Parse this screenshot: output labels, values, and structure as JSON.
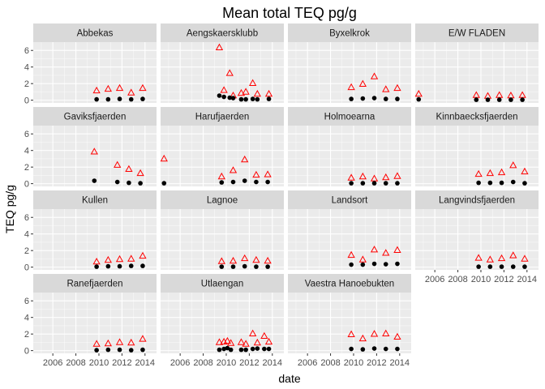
{
  "chart_data": {
    "type": "scatter",
    "title": "Mean total TEQ pg/g",
    "xlabel": "date",
    "ylabel": "TEQ pg/g",
    "xlim": [
      2004.3,
      2015.0
    ],
    "ylim": [
      -0.33,
      7.0
    ],
    "xticks": [
      "2006",
      "2008",
      "2010",
      "2012",
      "2014"
    ],
    "yticks": [
      "0",
      "2",
      "4",
      "6"
    ],
    "grid": true,
    "legend": "none",
    "colors": {
      "black_series": "#000000",
      "red_series": "#ff0000"
    },
    "markers": {
      "black_series": "filled-circle",
      "red_series": "open-triangle"
    },
    "panels": [
      {
        "name": "Abbekas",
        "black": [
          [
            2009.8,
            0.1
          ],
          [
            2010.8,
            0.1
          ],
          [
            2011.8,
            0.15
          ],
          [
            2012.8,
            0.1
          ],
          [
            2013.8,
            0.15
          ]
        ],
        "red": [
          [
            2009.8,
            1.15
          ],
          [
            2010.8,
            1.35
          ],
          [
            2011.8,
            1.45
          ],
          [
            2012.8,
            0.9
          ],
          [
            2013.8,
            1.45
          ]
        ]
      },
      {
        "name": "Aengskaersklubb",
        "black": [
          [
            2009.4,
            0.55
          ],
          [
            2009.8,
            0.4
          ],
          [
            2010.3,
            0.3
          ],
          [
            2010.6,
            0.25
          ],
          [
            2011.3,
            0.1
          ],
          [
            2011.7,
            0.1
          ],
          [
            2012.3,
            0.15
          ],
          [
            2012.7,
            0.1
          ],
          [
            2013.7,
            0.15
          ]
        ],
        "red": [
          [
            2009.4,
            6.35
          ],
          [
            2009.8,
            1.2
          ],
          [
            2010.3,
            3.25
          ],
          [
            2010.6,
            0.55
          ],
          [
            2011.3,
            0.85
          ],
          [
            2011.7,
            1.0
          ],
          [
            2012.3,
            2.05
          ],
          [
            2012.7,
            0.75
          ],
          [
            2013.7,
            0.75
          ]
        ]
      },
      {
        "name": "Byxelkrok",
        "black": [
          [
            2009.8,
            0.15
          ],
          [
            2010.8,
            0.2
          ],
          [
            2011.8,
            0.25
          ],
          [
            2012.8,
            0.15
          ],
          [
            2013.8,
            0.15
          ]
        ],
        "red": [
          [
            2009.8,
            1.55
          ],
          [
            2010.8,
            1.95
          ],
          [
            2011.8,
            2.85
          ],
          [
            2012.8,
            1.3
          ],
          [
            2013.8,
            1.45
          ]
        ]
      },
      {
        "name": "E/W FLADEN",
        "black": [
          [
            2004.6,
            0.1
          ],
          [
            2009.6,
            0.05
          ],
          [
            2010.6,
            0.05
          ],
          [
            2011.6,
            0.05
          ],
          [
            2012.6,
            0.05
          ],
          [
            2013.6,
            0.05
          ]
        ],
        "red": [
          [
            2004.6,
            0.75
          ],
          [
            2009.6,
            0.6
          ],
          [
            2010.6,
            0.5
          ],
          [
            2011.6,
            0.6
          ],
          [
            2012.6,
            0.55
          ],
          [
            2013.6,
            0.6
          ]
        ]
      },
      {
        "name": "Gaviksfjaerden",
        "black": [
          [
            2009.6,
            0.35
          ],
          [
            2011.6,
            0.2
          ],
          [
            2012.6,
            0.1
          ],
          [
            2013.6,
            0.05
          ]
        ],
        "red": [
          [
            2009.6,
            3.85
          ],
          [
            2011.6,
            2.25
          ],
          [
            2012.6,
            1.75
          ],
          [
            2013.6,
            1.25
          ]
        ]
      },
      {
        "name": "Harufjaerden",
        "black": [
          [
            2004.6,
            0.05
          ],
          [
            2009.6,
            0.15
          ],
          [
            2010.6,
            0.2
          ],
          [
            2011.6,
            0.35
          ],
          [
            2012.6,
            0.2
          ],
          [
            2013.6,
            0.2
          ]
        ],
        "red": [
          [
            2004.6,
            3.0
          ],
          [
            2009.6,
            0.85
          ],
          [
            2010.6,
            1.6
          ],
          [
            2011.6,
            2.9
          ],
          [
            2012.6,
            1.05
          ],
          [
            2013.6,
            1.1
          ]
        ]
      },
      {
        "name": "Holmoearna",
        "black": [
          [
            2009.8,
            0.05
          ],
          [
            2010.8,
            0.05
          ],
          [
            2011.8,
            0.05
          ],
          [
            2012.8,
            0.05
          ],
          [
            2013.8,
            0.05
          ]
        ],
        "red": [
          [
            2009.8,
            0.7
          ],
          [
            2010.8,
            0.85
          ],
          [
            2011.8,
            0.6
          ],
          [
            2012.8,
            0.75
          ],
          [
            2013.8,
            0.9
          ]
        ]
      },
      {
        "name": "Kinnbaecksfjaerden",
        "black": [
          [
            2009.8,
            0.1
          ],
          [
            2010.8,
            0.1
          ],
          [
            2011.8,
            0.1
          ],
          [
            2012.8,
            0.2
          ],
          [
            2013.8,
            0.05
          ]
        ],
        "red": [
          [
            2009.8,
            1.15
          ],
          [
            2010.8,
            1.25
          ],
          [
            2011.8,
            1.35
          ],
          [
            2012.8,
            2.2
          ],
          [
            2013.8,
            1.45
          ]
        ]
      },
      {
        "name": "Kullen",
        "black": [
          [
            2009.8,
            0.05
          ],
          [
            2010.8,
            0.1
          ],
          [
            2011.8,
            0.1
          ],
          [
            2012.8,
            0.15
          ],
          [
            2013.8,
            0.15
          ]
        ],
        "red": [
          [
            2009.8,
            0.65
          ],
          [
            2010.8,
            0.85
          ],
          [
            2011.8,
            0.95
          ],
          [
            2012.8,
            1.0
          ],
          [
            2013.8,
            1.35
          ]
        ]
      },
      {
        "name": "Lagnoe",
        "black": [
          [
            2009.6,
            0.05
          ],
          [
            2010.6,
            0.05
          ],
          [
            2011.6,
            0.1
          ],
          [
            2012.6,
            0.05
          ],
          [
            2013.6,
            0.05
          ]
        ],
        "red": [
          [
            2009.6,
            0.7
          ],
          [
            2010.6,
            0.75
          ],
          [
            2011.6,
            1.05
          ],
          [
            2012.6,
            0.85
          ],
          [
            2013.6,
            0.75
          ]
        ]
      },
      {
        "name": "Landsort",
        "black": [
          [
            2009.8,
            0.3
          ],
          [
            2010.8,
            0.3
          ],
          [
            2011.8,
            0.4
          ],
          [
            2012.8,
            0.35
          ],
          [
            2013.8,
            0.4
          ]
        ],
        "red": [
          [
            2009.8,
            1.45
          ],
          [
            2010.8,
            0.9
          ],
          [
            2011.8,
            2.1
          ],
          [
            2012.8,
            1.7
          ],
          [
            2013.8,
            2.05
          ]
        ]
      },
      {
        "name": "Langvindsfjaerden",
        "black": [
          [
            2009.8,
            0.05
          ],
          [
            2010.8,
            0.05
          ],
          [
            2011.8,
            0.05
          ],
          [
            2012.8,
            0.05
          ],
          [
            2013.8,
            0.05
          ]
        ],
        "red": [
          [
            2009.8,
            1.1
          ],
          [
            2010.8,
            0.9
          ],
          [
            2011.8,
            1.05
          ],
          [
            2012.8,
            1.4
          ],
          [
            2013.8,
            1.0
          ]
        ]
      },
      {
        "name": "Ranefjaerden",
        "black": [
          [
            2009.8,
            0.05
          ],
          [
            2010.8,
            0.1
          ],
          [
            2011.8,
            0.1
          ],
          [
            2012.8,
            0.05
          ],
          [
            2013.8,
            0.1
          ]
        ],
        "red": [
          [
            2009.8,
            0.8
          ],
          [
            2010.8,
            0.85
          ],
          [
            2011.8,
            1.0
          ],
          [
            2012.8,
            0.95
          ],
          [
            2013.8,
            1.4
          ]
        ]
      },
      {
        "name": "Utlaengan",
        "black": [
          [
            2009.4,
            0.1
          ],
          [
            2009.8,
            0.2
          ],
          [
            2010.1,
            0.3
          ],
          [
            2010.4,
            0.1
          ],
          [
            2011.3,
            0.1
          ],
          [
            2011.7,
            0.1
          ],
          [
            2012.3,
            0.2
          ],
          [
            2012.7,
            0.25
          ],
          [
            2013.3,
            0.2
          ],
          [
            2013.7,
            0.2
          ]
        ],
        "red": [
          [
            2009.4,
            1.0
          ],
          [
            2009.8,
            1.05
          ],
          [
            2010.1,
            1.15
          ],
          [
            2010.4,
            0.9
          ],
          [
            2011.3,
            1.0
          ],
          [
            2011.7,
            0.8
          ],
          [
            2012.3,
            2.05
          ],
          [
            2012.7,
            0.95
          ],
          [
            2013.3,
            1.75
          ],
          [
            2013.7,
            1.05
          ]
        ]
      },
      {
        "name": "Vaestra Hanoebukten",
        "black": [
          [
            2009.8,
            0.2
          ],
          [
            2010.8,
            0.15
          ],
          [
            2011.8,
            0.25
          ],
          [
            2012.8,
            0.2
          ],
          [
            2013.8,
            0.2
          ]
        ],
        "red": [
          [
            2009.8,
            1.95
          ],
          [
            2010.8,
            1.45
          ],
          [
            2011.8,
            2.0
          ],
          [
            2012.8,
            2.05
          ],
          [
            2013.8,
            1.65
          ]
        ]
      }
    ]
  }
}
